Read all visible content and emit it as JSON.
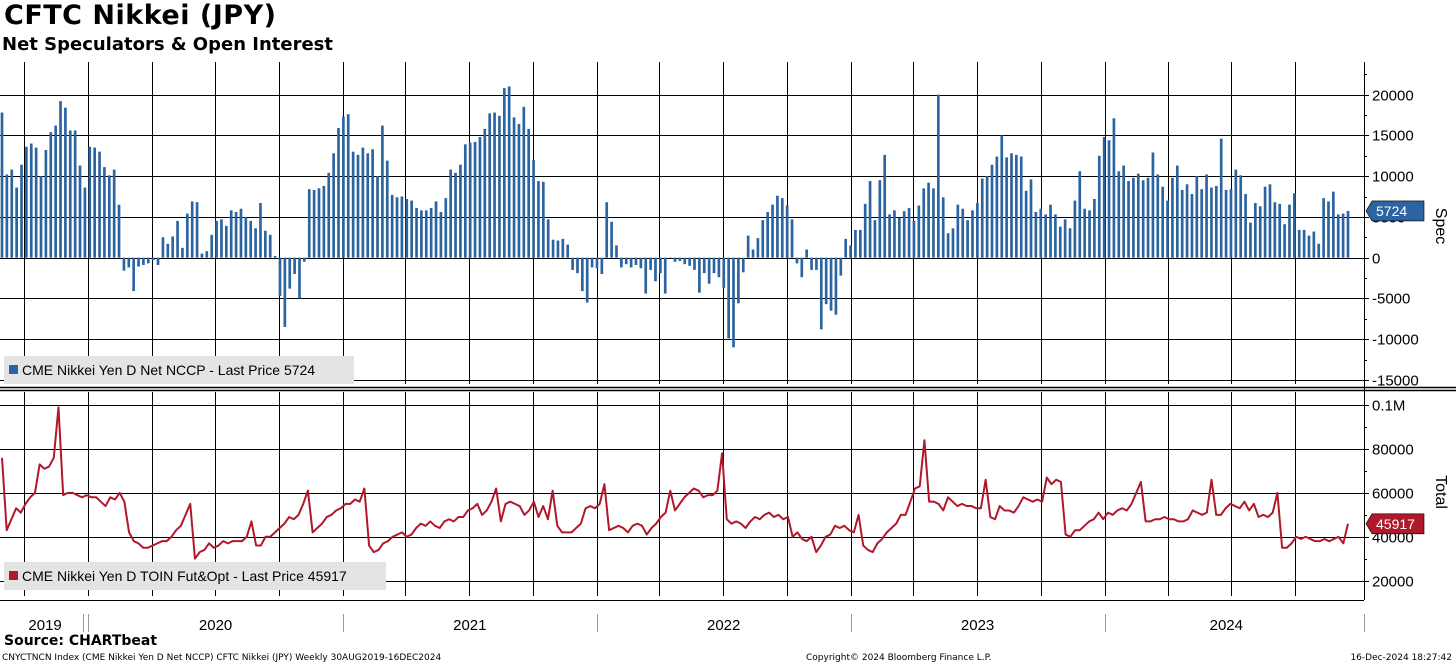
{
  "header": {
    "title": "CFTC Nikkei (JPY)",
    "subtitle": "Net Speculators & Open Interest"
  },
  "footer": {
    "source": "Source: CHARTbeat",
    "index_info": "CNYCTNCN Index (CME Nikkei Yen D Net NCCP) CFTC Nikkei (JPY)  Weekly 30AUG2019-16DEC2024",
    "copyright": "Copyright© 2024 Bloomberg Finance L.P.",
    "timestamp": "16-Dec-2024 18:27:42"
  },
  "colors": {
    "spec": "#2b64a0",
    "total": "#b0182b"
  },
  "x_axis": {
    "years": [
      "2019",
      "2020",
      "2021",
      "2022",
      "2023",
      "2024"
    ]
  },
  "chart_data": [
    {
      "type": "bar",
      "panel": "Spec",
      "axis_label": "Spec",
      "legend": "CME Nikkei Yen D Net NCCP - Last Price 5724",
      "last_value_label": "5724",
      "ylim": [
        -15500,
        24000
      ],
      "yticks": [
        20000,
        15000,
        10000,
        5000,
        0,
        -5000,
        -10000,
        -15000
      ],
      "ytick_labels": [
        "20000",
        "15000",
        "10000",
        "5000",
        "0",
        "-5000",
        "-10000",
        "-15000"
      ],
      "grid": true,
      "start": "2019-08-30",
      "end": "2024-12-16",
      "values": [
        17800,
        10200,
        10800,
        8600,
        11400,
        13600,
        14000,
        13500,
        10000,
        13200,
        15400,
        16200,
        19200,
        18400,
        15600,
        15600,
        11300,
        8600,
        13600,
        13500,
        13000,
        11100,
        10100,
        10800,
        6500,
        -1600,
        -1200,
        -4100,
        -1100,
        -900,
        -700,
        -300,
        -900,
        2500,
        1700,
        2600,
        4500,
        1200,
        5400,
        6900,
        6800,
        500,
        800,
        2800,
        4500,
        4700,
        3900,
        5800,
        5600,
        6000,
        5000,
        4500,
        3600,
        6700,
        3300,
        2800,
        200,
        -4700,
        -8500,
        -3800,
        -2000,
        -5000,
        -500,
        8400,
        8300,
        8500,
        8800,
        10400,
        12800,
        15900,
        17300,
        17600,
        13000,
        12600,
        13500,
        12800,
        13300,
        10000,
        16200,
        11900,
        7700,
        7400,
        7500,
        7200,
        7000,
        6100,
        5800,
        5800,
        6100,
        6900,
        5600,
        7300,
        10800,
        10400,
        11400,
        13900,
        14100,
        14200,
        14800,
        15800,
        17700,
        17800,
        17400,
        20800,
        21000,
        17200,
        16400,
        18500,
        15800,
        12000,
        9400,
        9300,
        4700,
        2200,
        2100,
        2300,
        1600,
        -1500,
        -1900,
        -4100,
        -5500,
        -1200,
        -1300,
        -2000,
        6800,
        4400,
        1500,
        -1200,
        -800,
        -1200,
        -900,
        -1300,
        -4400,
        -1500,
        -2900,
        -1900,
        -4400,
        0,
        -500,
        -400,
        -800,
        -1000,
        -1500,
        -4300,
        -1900,
        -3200,
        -1900,
        -2400,
        -3700,
        -9900,
        -11000,
        -5600,
        -1800,
        2700,
        1000,
        2400,
        4600,
        5600,
        6500,
        7600,
        7300,
        6400,
        4700,
        -700,
        -2400,
        1000,
        -1500,
        -1500,
        -8800,
        -5700,
        -6500,
        -7000,
        -2200,
        2300,
        1500,
        3400,
        3400,
        6600,
        9400,
        4600,
        9500,
        12600,
        5300,
        5800,
        4900,
        5700,
        6100,
        4500,
        6400,
        8500,
        9200,
        8500,
        20000,
        7400,
        3000,
        3600,
        6500,
        6000,
        4600,
        5800,
        6700,
        9700,
        10000,
        11400,
        12400,
        15000,
        12300,
        12800,
        12600,
        12400,
        8200,
        9600,
        5600,
        6000,
        5300,
        6500,
        5300,
        3800,
        4700,
        3600,
        7000,
        10600,
        6000,
        5800,
        7200,
        12500,
        14800,
        14400,
        17100,
        10600,
        11300,
        9400,
        9800,
        10300,
        9500,
        9800,
        12900,
        10200,
        8700,
        7000,
        9800,
        11300,
        8300,
        9000,
        7800,
        10000,
        8400,
        10200,
        8600,
        8800,
        14600,
        8300,
        8400,
        10800,
        10100,
        7800,
        4300,
        6700,
        6300,
        8700,
        9000,
        6800,
        6600,
        4100,
        6500,
        7900,
        3400,
        3400,
        2700,
        3200,
        1700,
        7300,
        6900,
        8100,
        5300,
        5400,
        5724
      ]
    },
    {
      "type": "line",
      "panel": "Total",
      "axis_label": "Total",
      "legend": "CME Nikkei Yen D TOIN Fut&Opt - Last Price 45917",
      "last_value_label": "45917",
      "ylim": [
        13000,
        106000
      ],
      "yticks": [
        100000,
        80000,
        60000,
        40000,
        20000
      ],
      "ytick_labels": [
        "0.1M",
        "80000",
        "60000",
        "40000",
        "20000"
      ],
      "grid": true,
      "start": "2019-08-30",
      "end": "2024-12-16",
      "values": [
        76000,
        43000,
        48000,
        53000,
        51000,
        55000,
        58000,
        60000,
        73000,
        71000,
        72000,
        76000,
        99000,
        59000,
        60000,
        60000,
        59000,
        58000,
        59000,
        58000,
        58000,
        56000,
        54000,
        58000,
        57000,
        60000,
        56000,
        42000,
        38000,
        37000,
        35000,
        35000,
        36000,
        37000,
        38000,
        38000,
        40000,
        43000,
        45000,
        50000,
        55000,
        30000,
        33000,
        34000,
        37000,
        35000,
        36000,
        38000,
        37000,
        38000,
        38000,
        38000,
        40000,
        47000,
        36000,
        36000,
        40000,
        40000,
        42000,
        44000,
        46000,
        49000,
        48000,
        50000,
        55000,
        61000,
        42000,
        44000,
        46000,
        49000,
        50000,
        52000,
        53000,
        55000,
        55000,
        57000,
        56000,
        62000,
        36000,
        33000,
        34000,
        37000,
        38000,
        40000,
        41000,
        42000,
        40000,
        41000,
        44000,
        46000,
        45000,
        47000,
        45000,
        44000,
        47000,
        48000,
        47000,
        49000,
        49000,
        52000,
        53000,
        55000,
        50000,
        52000,
        56000,
        62000,
        47000,
        55000,
        56000,
        55000,
        54000,
        50000,
        52000,
        56000,
        49000,
        54000,
        48000,
        61000,
        45000,
        42000,
        42000,
        42000,
        44000,
        46000,
        53000,
        54000,
        53000,
        55000,
        64000,
        43000,
        44000,
        45000,
        44000,
        42000,
        45000,
        46000,
        45000,
        41000,
        44000,
        46000,
        49000,
        51000,
        61000,
        52000,
        55000,
        58000,
        60000,
        62000,
        61000,
        58000,
        59000,
        59000,
        61000,
        78000,
        48000,
        46000,
        47000,
        46000,
        44000,
        47000,
        49000,
        48000,
        50000,
        51000,
        49000,
        50000,
        48000,
        49000,
        40000,
        42000,
        39000,
        38000,
        40000,
        33000,
        36000,
        40000,
        41000,
        45000,
        44000,
        45000,
        43000,
        42000,
        50000,
        36000,
        34000,
        33000,
        37000,
        39000,
        42000,
        44000,
        46000,
        50000,
        50000,
        56000,
        62000,
        63000,
        84000,
        56000,
        56000,
        55000,
        52000,
        58000,
        56000,
        54000,
        55000,
        54000,
        54000,
        53000,
        53000,
        66000,
        49000,
        48000,
        54000,
        52000,
        52000,
        51000,
        54000,
        58000,
        57000,
        56000,
        57000,
        56000,
        67000,
        64000,
        66000,
        65000,
        41000,
        40000,
        43000,
        43000,
        45000,
        47000,
        48000,
        51000,
        48000,
        51000,
        50000,
        52000,
        53000,
        52000,
        55000,
        60000,
        65000,
        47000,
        47000,
        48000,
        48000,
        49000,
        48000,
        48000,
        47000,
        47000,
        48000,
        52000,
        51000,
        50000,
        51000,
        66000,
        50000,
        50000,
        53000,
        55000,
        54000,
        53000,
        56000,
        52000,
        55000,
        49000,
        50000,
        49000,
        51000,
        60000,
        35000,
        35000,
        37000,
        40000,
        39000,
        40000,
        39000,
        38000,
        38000,
        39000,
        38000,
        39000,
        40000,
        37000,
        45917
      ]
    }
  ]
}
